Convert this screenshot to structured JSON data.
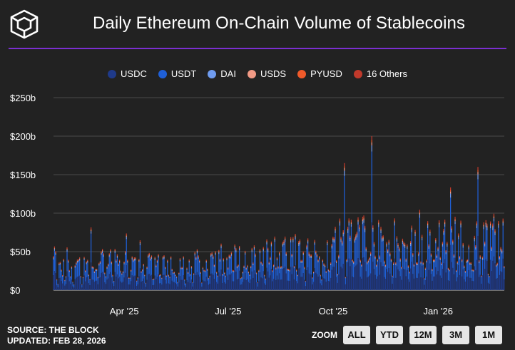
{
  "title": "Daily Ethereum On-Chain Volume of Stablecoins",
  "footer": {
    "source": "SOURCE: THE BLOCK",
    "updated": "UPDATED: FEB 28, 2026"
  },
  "zoom": {
    "label": "ZOOM",
    "buttons": [
      "ALL",
      "YTD",
      "12M",
      "3M",
      "1M"
    ]
  },
  "colors": {
    "accent_rule": "#7b2fd1",
    "background": "#222222"
  },
  "chart_data": {
    "type": "bar",
    "stacked": true,
    "title": "Daily Ethereum On-Chain Volume of Stablecoins",
    "legend": {
      "placement": "top",
      "entries": [
        "USDC",
        "USDT",
        "DAI",
        "USDS",
        "PYUSD",
        "16 Others"
      ]
    },
    "series": [
      {
        "name": "USDC",
        "color": "#1f3a8a"
      },
      {
        "name": "USDT",
        "color": "#1f5fd6"
      },
      {
        "name": "DAI",
        "color": "#6f9cf0"
      },
      {
        "name": "USDS",
        "color": "#f29a85"
      },
      {
        "name": "PYUSD",
        "color": "#f05a2a"
      },
      {
        "name": "16 Others",
        "color": "#c0392b"
      }
    ],
    "x_range": [
      "2025-01-29",
      "2026-02-28"
    ],
    "x_ticks": [
      {
        "label": "Apr '25",
        "date": "2025-04-01"
      },
      {
        "label": "Jul '25",
        "date": "2025-07-01"
      },
      {
        "label": "Oct '25",
        "date": "2025-10-01"
      },
      {
        "label": "Jan '26",
        "date": "2026-01-01"
      }
    ],
    "y_ticks": [
      {
        "label": "$0",
        "value": 0
      },
      {
        "label": "$50b",
        "value": 50
      },
      {
        "label": "$100b",
        "value": 100
      },
      {
        "label": "$150b",
        "value": 150
      },
      {
        "label": "$200b",
        "value": 200
      },
      {
        "label": "$250b",
        "value": 250
      }
    ],
    "y_unit": "billion USD",
    "ylim": [
      0,
      250
    ],
    "grid": true,
    "monthly_typical_total_b": [
      {
        "month": "2025-02",
        "value": 30
      },
      {
        "month": "2025-03",
        "value": 40
      },
      {
        "month": "2025-04",
        "value": 35
      },
      {
        "month": "2025-05",
        "value": 33
      },
      {
        "month": "2025-06",
        "value": 36
      },
      {
        "month": "2025-07",
        "value": 40
      },
      {
        "month": "2025-08",
        "value": 50
      },
      {
        "month": "2025-09",
        "value": 45
      },
      {
        "month": "2025-10",
        "value": 65
      },
      {
        "month": "2025-11",
        "value": 65
      },
      {
        "month": "2025-12",
        "value": 60
      },
      {
        "month": "2026-01",
        "value": 65
      },
      {
        "month": "2026-02",
        "value": 68
      }
    ],
    "notable_peaks_b": [
      {
        "date": "2025-10-11",
        "value": 165
      },
      {
        "date": "2025-11-04",
        "value": 200
      },
      {
        "date": "2026-02-05",
        "value": 160
      }
    ]
  }
}
